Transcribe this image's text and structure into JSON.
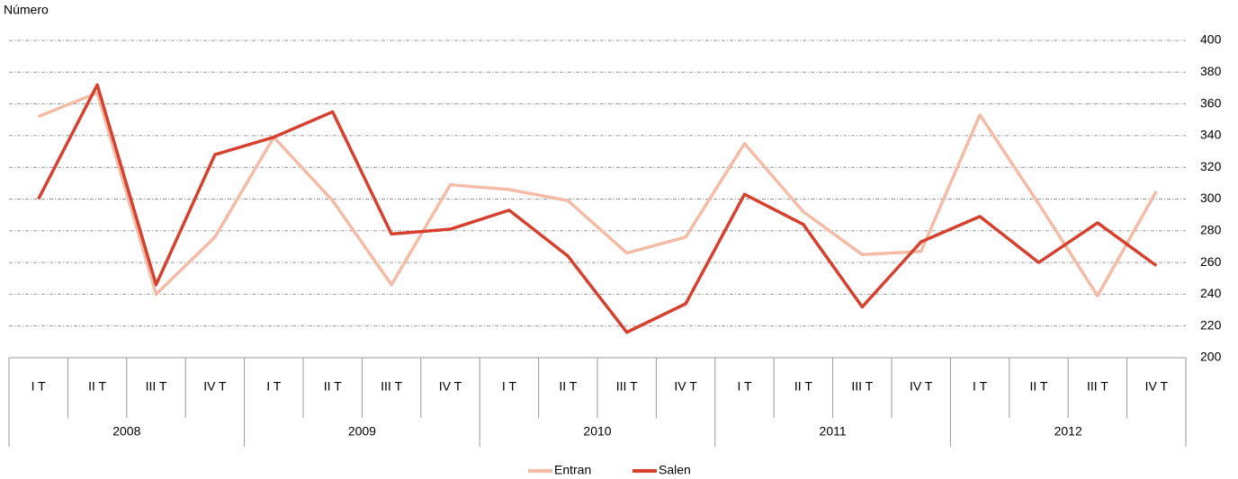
{
  "chart_data": {
    "type": "line",
    "y_label": "Número",
    "categories": [
      "I T",
      "II T",
      "III T",
      "IV T",
      "I T",
      "II T",
      "III T",
      "IV T",
      "I T",
      "II T",
      "III T",
      "IV T",
      "I T",
      "II T",
      "III T",
      "IV T",
      "I T",
      "II T",
      "III T",
      "IV T"
    ],
    "groups": [
      "2008",
      "2009",
      "2010",
      "2011",
      "2012"
    ],
    "series": [
      {
        "name": "Entran",
        "color": "#f4bba6",
        "values": [
          352,
          367,
          240,
          276,
          339,
          299,
          246,
          309,
          306,
          299,
          266,
          276,
          335,
          292,
          265,
          267,
          353,
          297,
          239,
          305
        ]
      },
      {
        "name": "Salen",
        "color": "#d6412f",
        "values": [
          300,
          372,
          246,
          328,
          339,
          355,
          278,
          281,
          293,
          264,
          216,
          234,
          303,
          284,
          232,
          273,
          289,
          260,
          285,
          258
        ]
      }
    ],
    "ylim": [
      200,
      400
    ],
    "yticks": [
      200,
      220,
      240,
      260,
      280,
      300,
      320,
      340,
      360,
      380,
      400
    ],
    "grid": true,
    "legend": "bottom"
  }
}
